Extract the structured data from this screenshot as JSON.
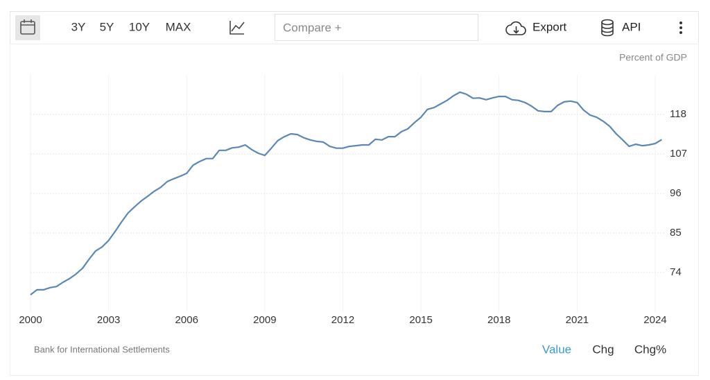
{
  "toolbar": {
    "ranges": [
      "3Y",
      "5Y",
      "10Y",
      "MAX"
    ],
    "compare": "Compare +",
    "export": "Export",
    "api": "API"
  },
  "chart_data": {
    "type": "line",
    "unit_label": "Percent of GDP",
    "source": "Bank for International Settlements",
    "color": "#5b87b5",
    "x": [
      2000,
      2000.25,
      2000.5,
      2000.75,
      2001,
      2001.25,
      2001.5,
      2001.75,
      2002,
      2002.25,
      2002.5,
      2002.75,
      2003,
      2003.25,
      2003.5,
      2003.75,
      2004,
      2004.25,
      2004.5,
      2004.75,
      2005,
      2005.25,
      2005.5,
      2005.75,
      2006,
      2006.25,
      2006.5,
      2006.75,
      2007,
      2007.25,
      2007.5,
      2007.75,
      2008,
      2008.25,
      2008.5,
      2008.75,
      2009,
      2009.25,
      2009.5,
      2009.75,
      2010,
      2010.25,
      2010.5,
      2010.75,
      2011,
      2011.25,
      2011.5,
      2011.75,
      2012,
      2012.25,
      2012.5,
      2012.75,
      2013,
      2013.25,
      2013.5,
      2013.75,
      2014,
      2014.25,
      2014.5,
      2014.75,
      2015,
      2015.25,
      2015.5,
      2015.75,
      2016,
      2016.25,
      2016.5,
      2016.75,
      2017,
      2017.25,
      2017.5,
      2017.75,
      2018,
      2018.25,
      2018.5,
      2018.75,
      2019,
      2019.25,
      2019.5,
      2019.75,
      2020,
      2020.25,
      2020.5,
      2020.75,
      2021,
      2021.25,
      2021.5,
      2021.75,
      2022,
      2022.25,
      2022.5,
      2022.75,
      2023,
      2023.25,
      2023.5,
      2023.75,
      2024,
      2024.25
    ],
    "values": [
      67.8,
      69.2,
      69.2,
      69.8,
      70.1,
      71.3,
      72.3,
      73.6,
      75.2,
      77.7,
      80.0,
      81.1,
      82.9,
      85.4,
      88.1,
      90.6,
      92.3,
      93.9,
      95.2,
      96.6,
      97.7,
      99.3,
      100.1,
      100.8,
      101.6,
      103.9,
      104.9,
      105.7,
      105.7,
      108.0,
      108.0,
      108.7,
      108.9,
      109.5,
      108.2,
      107.2,
      106.6,
      108.6,
      110.7,
      111.8,
      112.6,
      112.4,
      111.5,
      110.9,
      110.5,
      110.3,
      109.1,
      108.6,
      108.6,
      109.1,
      109.3,
      109.5,
      109.5,
      111.1,
      110.9,
      111.8,
      111.8,
      113.2,
      114.0,
      115.7,
      117.2,
      119.4,
      119.9,
      120.9,
      121.9,
      123.2,
      124.2,
      123.6,
      122.5,
      122.6,
      122.1,
      122.6,
      123.0,
      123.0,
      122.1,
      121.9,
      121.3,
      120.3,
      119.0,
      118.8,
      118.8,
      120.5,
      121.5,
      121.7,
      121.3,
      119.2,
      117.8,
      117.2,
      116.1,
      114.7,
      112.6,
      110.9,
      109.1,
      109.7,
      109.3,
      109.5,
      109.9,
      111.0
    ],
    "xlim": [
      2000,
      2024.4
    ],
    "xticks": [
      2000,
      2003,
      2006,
      2009,
      2012,
      2015,
      2018,
      2021,
      2024
    ],
    "ylim": [
      63,
      129
    ],
    "yticks": [
      74,
      85,
      96,
      107,
      118
    ],
    "grid": true
  },
  "view_tabs": [
    "Value",
    "Chg",
    "Chg%"
  ]
}
